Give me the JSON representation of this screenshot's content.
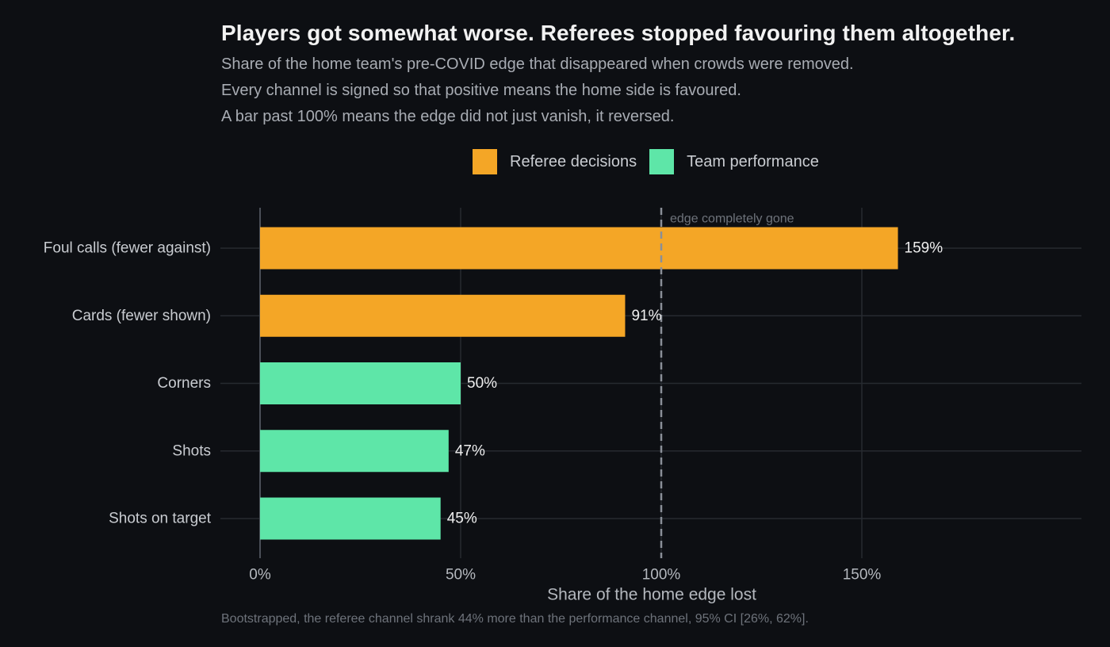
{
  "chart_data": {
    "type": "bar",
    "orientation": "horizontal",
    "title": "Players got somewhat worse. Referees stopped favouring them altogether.",
    "subtitle": [
      "Share of the home team's pre-COVID edge that disappeared when crowds were removed.",
      "Every channel is signed so that positive means the home side is favoured.",
      "A bar past 100% means the edge did not just vanish, it reversed."
    ],
    "xlabel": "Share of the home edge lost",
    "ylabel": "",
    "xlim": [
      -0.05,
      2.05
    ],
    "x_ticks": [
      {
        "value": 0,
        "label": "0%"
      },
      {
        "value": 0.5,
        "label": "50%"
      },
      {
        "value": 1.0,
        "label": "100%"
      },
      {
        "value": 1.5,
        "label": "150%"
      }
    ],
    "grid": true,
    "legend_position": "top",
    "legend": [
      {
        "name": "Referee decisions",
        "color": "#f4a626"
      },
      {
        "name": "Team performance",
        "color": "#5ee6a8"
      }
    ],
    "categories": [
      "Foul calls (fewer against)",
      "Cards (fewer shown)",
      "Corners",
      "Shots",
      "Shots on target"
    ],
    "bars": [
      {
        "category": "Foul calls (fewer against)",
        "value": 1.59,
        "label": "159%",
        "group": "Referee decisions"
      },
      {
        "category": "Cards (fewer shown)",
        "value": 0.91,
        "label": "91%",
        "group": "Referee decisions"
      },
      {
        "category": "Corners",
        "value": 0.5,
        "label": "50%",
        "group": "Team performance"
      },
      {
        "category": "Shots",
        "value": 0.47,
        "label": "47%",
        "group": "Team performance"
      },
      {
        "category": "Shots on target",
        "value": 0.45,
        "label": "45%",
        "group": "Team performance"
      }
    ],
    "reference_line": {
      "value": 1.0,
      "label": "edge completely gone",
      "style": "dashed"
    },
    "caption": "Bootstrapped, the referee channel shrank 44% more than the performance channel, 95% CI [26%, 62%]."
  }
}
